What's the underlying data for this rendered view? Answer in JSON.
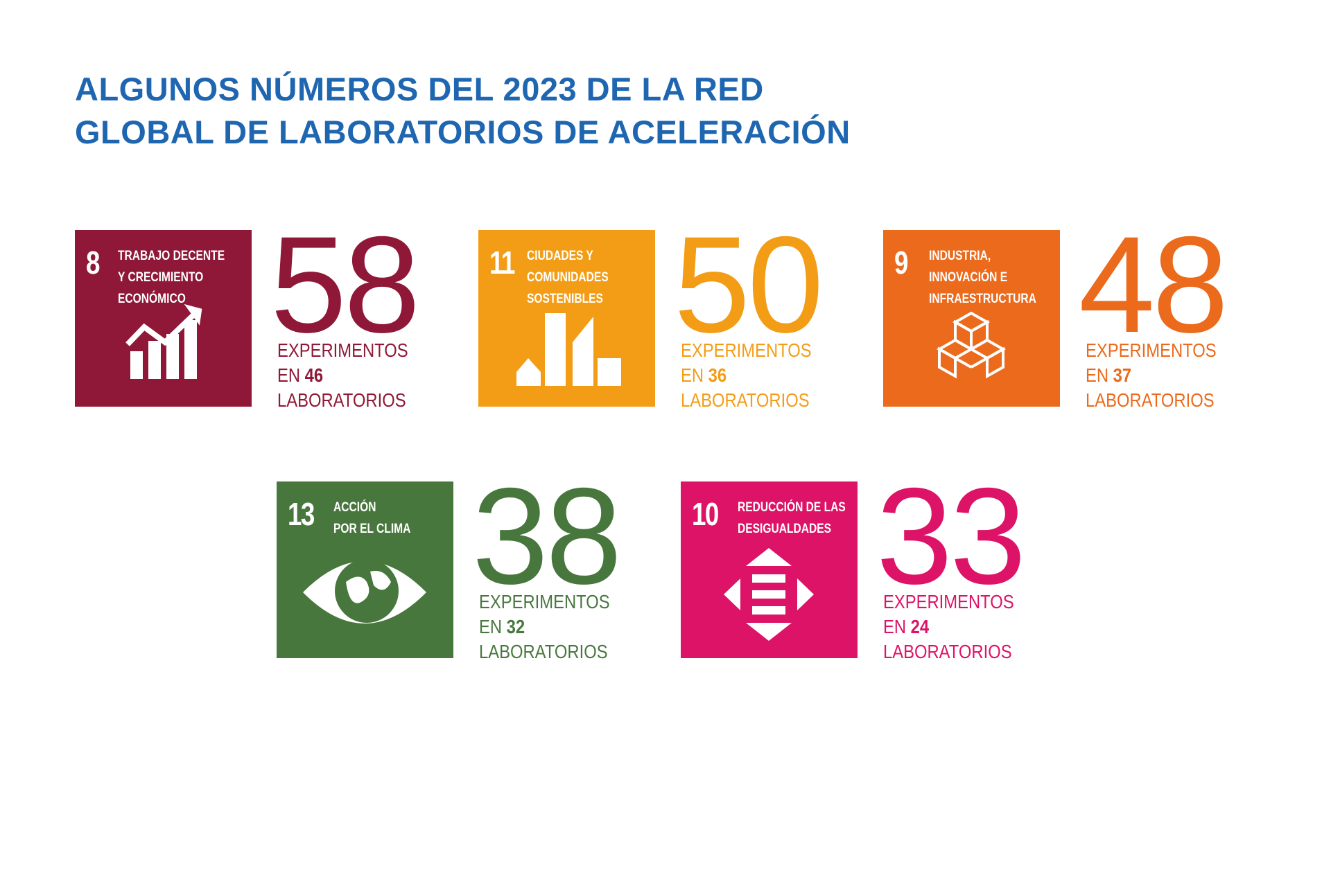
{
  "header": {
    "title_lines": [
      "ALGUNOS NÚMEROS DEL 2023 DE LA RED",
      "GLOBAL DE LABORATORIOS DE ACELERACIÓN"
    ]
  },
  "goals": [
    {
      "number": "8",
      "name_lines": [
        "TRABAJO DECENTE",
        "Y CRECIMIENTO",
        "ECONÓMICO"
      ],
      "color": "#8f1838",
      "value": "58",
      "line1": "EXPERIMENTOS",
      "en": "EN",
      "labs": "46",
      "line3": "LABORATORIOS"
    },
    {
      "number": "11",
      "name_lines": [
        "CIUDADES Y",
        "COMUNIDADES",
        "SOSTENIBLES"
      ],
      "color": "#f39d17",
      "value": "50",
      "line1": "EXPERIMENTOS",
      "en": "EN",
      "labs": "36",
      "line3": "LABORATORIOS"
    },
    {
      "number": "9",
      "name_lines": [
        "INDUSTRIA,",
        "INNOVACIÓN E",
        "INFRAESTRUCTURA"
      ],
      "color": "#eb6a1c",
      "value": "48",
      "line1": "EXPERIMENTOS",
      "en": "EN",
      "labs": "37",
      "line3": "LABORATORIOS"
    },
    {
      "number": "13",
      "name_lines": [
        "ACCIÓN",
        "POR EL CLIMA"
      ],
      "color": "#48773e",
      "value": "38",
      "line1": "EXPERIMENTOS",
      "en": "EN",
      "labs": "32",
      "line3": "LABORATORIOS"
    },
    {
      "number": "10",
      "name_lines": [
        "REDUCCIÓN DE LAS",
        "DESIGUALDADES"
      ],
      "color": "#dd1367",
      "value": "33",
      "line1": "EXPERIMENTOS",
      "en": "EN",
      "labs": "24",
      "line3": "LABORATORIOS"
    }
  ]
}
